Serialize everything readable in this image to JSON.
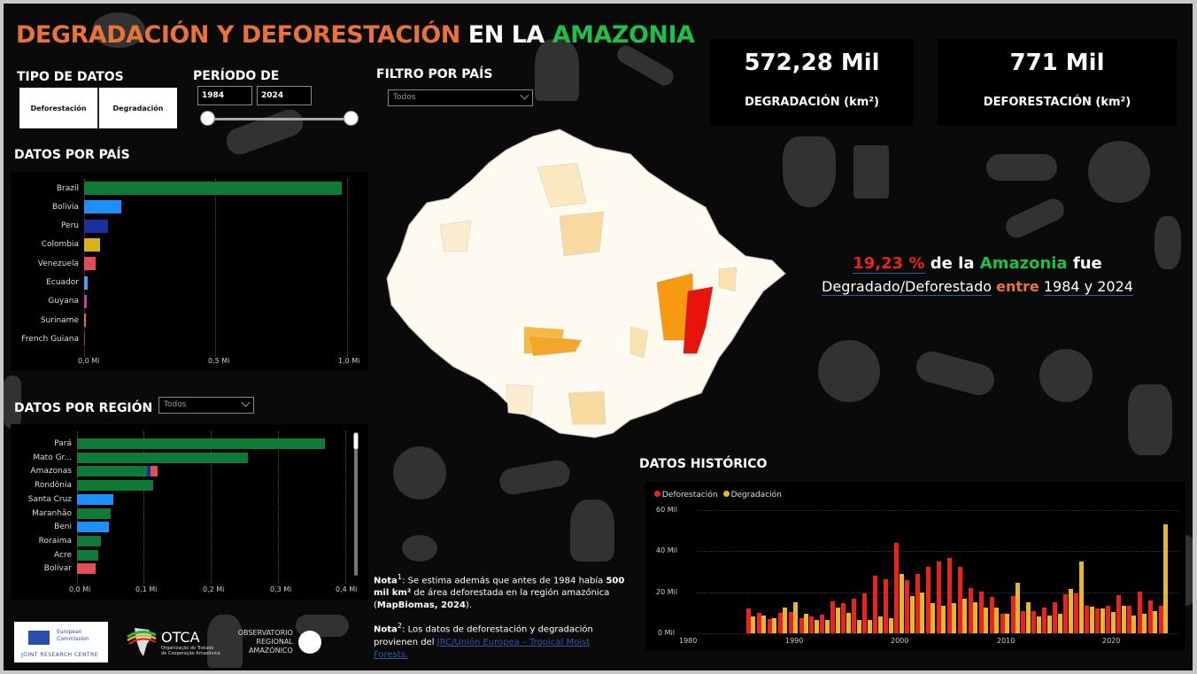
{
  "header": {
    "title_part1": "DEGRADACIÓN Y DEFORESTACIÓN",
    "title_part2": "EN LA",
    "title_part3": "AMAZONIA"
  },
  "filters": {
    "tipo_datos": {
      "label": "TIPO DE DATOS",
      "options": [
        "Deforestación",
        "Degradación"
      ]
    },
    "periodo": {
      "label": "PERÍODO DE",
      "start": "1984",
      "end": "2024"
    },
    "pais": {
      "label": "FILTRO POR PAÍS",
      "value": "Todos"
    }
  },
  "kpis": {
    "degradacion": {
      "value": "572,28 Mil",
      "label": "DEGRADACIÓN (km²)"
    },
    "deforestacion": {
      "value": "771 Mil",
      "label": "DEFORESTACIÓN (km²)"
    }
  },
  "summary": {
    "percent": "19,23 %",
    "text1": "de la",
    "amazonia": "Amazonia",
    "fue": "fue",
    "text2": "Degradado/Deforestado",
    "entre": "entre",
    "range": "1984 y 2024"
  },
  "country_panel": {
    "title": "DATOS POR PAÍS",
    "ticks": [
      "0,0 Mi",
      "0,5 Mi",
      "1,0 Mi"
    ]
  },
  "region_panel": {
    "title": "DATOS POR REGIÓN",
    "dropdown_value": "Todos",
    "ticks": [
      "0,0 Mi",
      "0,1 Mi",
      "0,2 Mi",
      "0,3 Mi",
      "0,4 Mi"
    ]
  },
  "history_panel": {
    "title": "DATOS HISTÓRICO",
    "legend": [
      "Deforestación",
      "Degradación"
    ],
    "yticks": [
      "60 Mil",
      "40 Mil",
      "20 Mil",
      "0 Mil"
    ],
    "xticks": [
      "1980",
      "1990",
      "2000",
      "2010",
      "2020"
    ]
  },
  "notes": {
    "n1_label": "Nota",
    "n1_sup": "1",
    "n1_text_a": ": Se estima además que antes de 1984 había ",
    "n1_bold": "500 mil km²",
    "n1_text_b": " de área deforestada en la región amazónica (",
    "n1_source": "MapBiomas, 2024",
    "n1_end": ").",
    "n2_label": "Nota",
    "n2_sup": "2",
    "n2_text": ": Los datos de deforestación y degradación provienen del ",
    "n2_link": "JRC/Unión Europea – Tropical Moist Forests."
  },
  "logos": {
    "eu_line1": "European",
    "eu_line2": "Commission",
    "jrc": "JOINT RESEARCH CENTRE",
    "otca": "OTCA",
    "otca_sub1": "Organização do Tratado",
    "otca_sub2": "de Cooperação Amazônica",
    "ora1": "OBSERVATORIO",
    "ora2": "REGIONAL",
    "ora3": "AMAZÓNICO"
  },
  "colors": {
    "title_orange": "#e8733a",
    "title_green": "#1fbf4a",
    "deforestation": "#e8241c",
    "degradation": "#e8b531"
  },
  "chart_data": [
    {
      "type": "bar",
      "title": "DATOS POR PAÍS",
      "orientation": "horizontal",
      "categories": [
        "Brazil",
        "Bolivia",
        "Peru",
        "Colombia",
        "Venezuela",
        "Ecuador",
        "Guyana",
        "Suriname",
        "French Guiana"
      ],
      "values": [
        0.98,
        0.14,
        0.09,
        0.06,
        0.045,
        0.012,
        0.01,
        0.007,
        0.001
      ],
      "colors": [
        "#0f7a35",
        "#1e8fff",
        "#1a2fa0",
        "#d9b21a",
        "#e0505a",
        "#4aa0f0",
        "#c040a0",
        "#e0703a",
        "#b03080"
      ],
      "xlabel": "",
      "unit": "Mi",
      "xlim": [
        0,
        1.0
      ],
      "ticks": [
        "0,0 Mi",
        "0,5 Mi",
        "1,0 Mi"
      ],
      "grid": true
    },
    {
      "type": "bar",
      "title": "DATOS POR REGIÓN",
      "orientation": "horizontal",
      "categories": [
        "Pará",
        "Mato Gr...",
        "Amazonas",
        "Rondônia",
        "Santa Cruz",
        "Maranhão",
        "Beni",
        "Roraima",
        "Acre",
        "Bolívar"
      ],
      "values": [
        0.37,
        0.255,
        0.12,
        0.113,
        0.054,
        0.05,
        0.048,
        0.036,
        0.032,
        0.028
      ],
      "colors": [
        "#0f7a35",
        "#0f7a35",
        "#0f7a35",
        "#0f7a35",
        "#1e8fff",
        "#0f7a35",
        "#1e8fff",
        "#0f7a35",
        "#0f7a35",
        "#e0505a"
      ],
      "stacked_note": "Amazonas bar stacked: Brazil ~0.104, Peru ~0.006, Venezuela ~0.01",
      "unit": "Mi",
      "xlim": [
        0,
        0.4
      ],
      "ticks": [
        "0,0 Mi",
        "0,1 Mi",
        "0,2 Mi",
        "0,3 Mi",
        "0,4 Mi"
      ],
      "grid": true
    },
    {
      "type": "bar",
      "title": "DATOS HISTÓRICO",
      "x": [
        1985,
        1986,
        1987,
        1988,
        1989,
        1990,
        1991,
        1992,
        1993,
        1994,
        1995,
        1996,
        1997,
        1998,
        1999,
        2000,
        2001,
        2002,
        2003,
        2004,
        2005,
        2006,
        2007,
        2008,
        2009,
        2010,
        2011,
        2012,
        2013,
        2014,
        2015,
        2016,
        2017,
        2018,
        2019,
        2020,
        2021,
        2022,
        2023,
        2024
      ],
      "series": [
        {
          "name": "Deforestación",
          "color": "#e8241c",
          "values": [
            12,
            10,
            7,
            10,
            10.5,
            7.5,
            8,
            9,
            15.5,
            14.5,
            17,
            19.5,
            28,
            26.5,
            44,
            26,
            29,
            32.5,
            35,
            36.5,
            32.5,
            22,
            20.5,
            17.5,
            9.5,
            18,
            11,
            11,
            12.5,
            15,
            19,
            19.5,
            13.5,
            12,
            13.5,
            18.5,
            13.5,
            20.5,
            16,
            13.5
          ]
        },
        {
          "name": "Degradación",
          "color": "#e8b531",
          "values": [
            8,
            8.5,
            7.5,
            12.5,
            15,
            9.5,
            6.5,
            6.5,
            12.5,
            10,
            6.5,
            6.5,
            8,
            7.5,
            29,
            18,
            20,
            14.5,
            13.5,
            14.5,
            17,
            15,
            12.5,
            12.5,
            9.5,
            24.5,
            15,
            8,
            8.5,
            9.5,
            21.5,
            35,
            13,
            12,
            10.5,
            13.5,
            8.5,
            9.5,
            11,
            53
          ]
        }
      ],
      "unit": "Mil km²",
      "ylim": [
        0,
        60
      ],
      "yticks": [
        "0 Mil",
        "20 Mil",
        "40 Mil",
        "60 Mil"
      ],
      "xticks": [
        "1980",
        "1990",
        "2000",
        "2010",
        "2020"
      ],
      "legend_position": "top-left",
      "grid": true
    }
  ]
}
